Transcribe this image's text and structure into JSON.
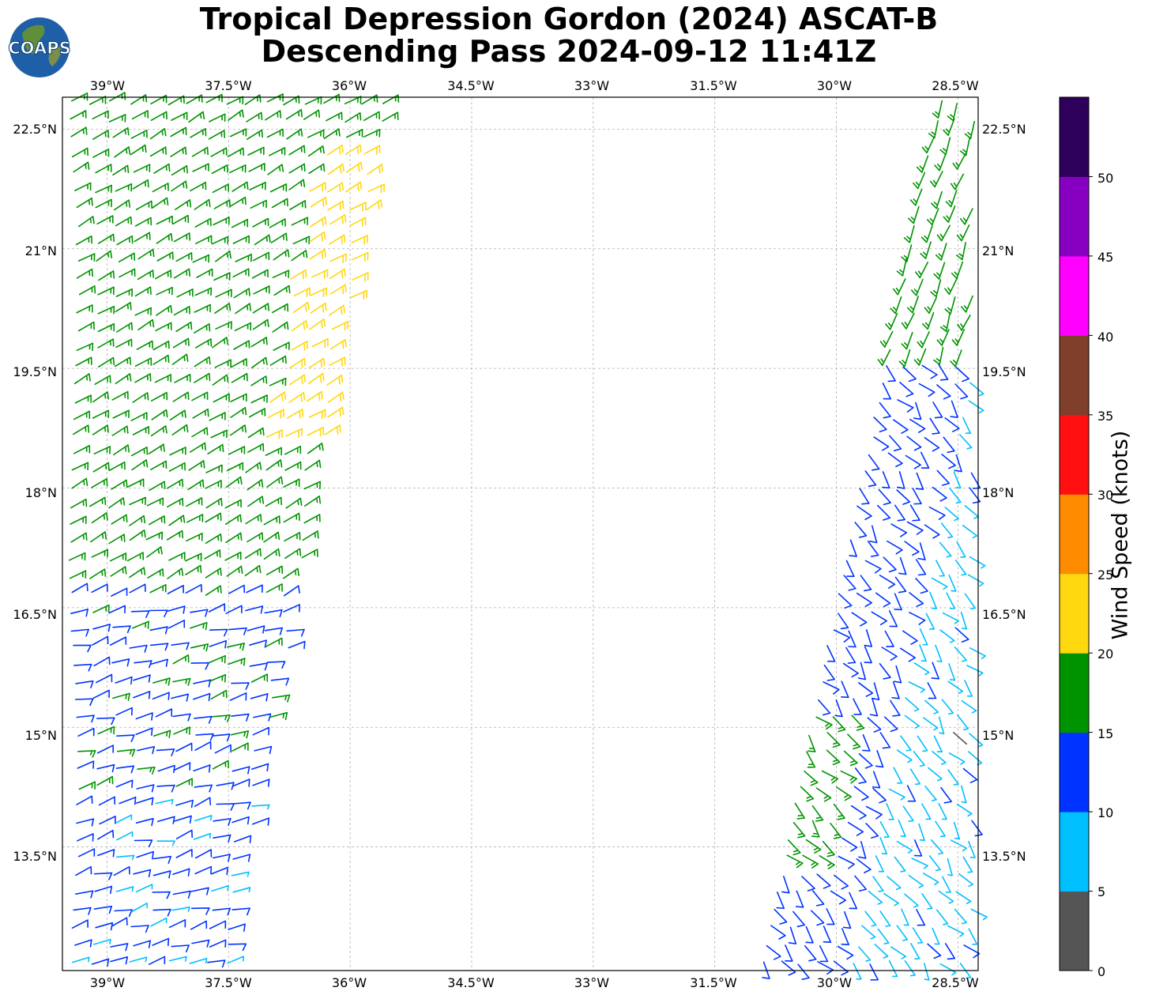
{
  "title": {
    "line1": "Tropical Depression Gordon (2024) ASCAT-B",
    "line2": "Descending Pass 2024-09-12 11:41Z"
  },
  "logo": {
    "text": "COAPS",
    "icon": "globe-logo-icon"
  },
  "map": {
    "lon_range": [
      -39.55,
      -28.25
    ],
    "lat_range": [
      11.95,
      22.9
    ],
    "lon_ticks": [
      "39°W",
      "37.5°W",
      "36°W",
      "34.5°W",
      "33°W",
      "31.5°W",
      "30°W",
      "28.5°W"
    ],
    "lat_ticks": [
      "22.5°N",
      "21°N",
      "19.5°N",
      "18°N",
      "16.5°N",
      "15°N",
      "13.5°N"
    ],
    "gridlines": true,
    "swaths": [
      {
        "side": "west",
        "lon_range": [
          -39.4,
          -35.5
        ],
        "lat_range": [
          12.0,
          22.9
        ]
      },
      {
        "side": "east",
        "lon_range": [
          -30.9,
          -28.3
        ],
        "lat_range": [
          12.0,
          22.9
        ]
      }
    ],
    "barb_colors_by_speed": {
      "0-5": "#555555",
      "5-10": "#00bfff",
      "10-15": "#0033ff",
      "15-20": "#009300",
      "20-25": "#ffd70f",
      "25-30": "#ff8c00",
      "30-35": "#ff0f0f",
      "35-40": "#7f3f2a",
      "40-45": "#ff00ff",
      "45-50": "#8700c2",
      "50+": "#2d0059"
    }
  },
  "colorbar": {
    "label": "Wind Speed (knots)",
    "ticks": [
      "0",
      "5",
      "10",
      "15",
      "20",
      "25",
      "30",
      "35",
      "40",
      "45",
      "50"
    ],
    "colors": [
      "#555555",
      "#00bfff",
      "#0033ff",
      "#009300",
      "#ffd70f",
      "#ff8c00",
      "#ff0f0f",
      "#7f3f2a",
      "#ff00ff",
      "#8700c2",
      "#2d0059"
    ]
  }
}
